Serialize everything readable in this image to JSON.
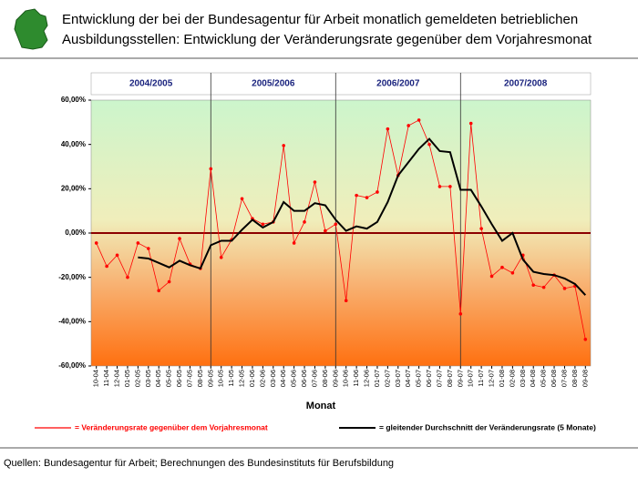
{
  "chart_data": {
    "type": "line",
    "title": "Entwicklung der bei der Bundesagentur für Arbeit monatlich gemeldeten betrieblichen",
    "subtitle": "Ausbildungsstellen: Entwicklung der Veränderungsrate gegenüber dem Vorjahresmonat",
    "periods": [
      "2004/2005",
      "2005/2006",
      "2006/2007",
      "2007/2008"
    ],
    "x_label": "Monat",
    "source": "Quellen: Bundesagentur für Arbeit; Berechnungen des Bundesinstituts für Berufsbildung",
    "categories": [
      "10-04",
      "11-04",
      "12-04",
      "01-05",
      "02-05",
      "03-05",
      "04-05",
      "05-05",
      "06-05",
      "07-05",
      "08-05",
      "09-05",
      "10-05",
      "11-05",
      "12-05",
      "01-06",
      "02-06",
      "03-06",
      "04-06",
      "05-06",
      "06-06",
      "07-06",
      "08-06",
      "09-06",
      "10-06",
      "11-06",
      "12-06",
      "01-07",
      "02-07",
      "03-07",
      "04-07",
      "05-07",
      "06-07",
      "07-07",
      "08-07",
      "09-07",
      "10-07",
      "11-07",
      "12-07",
      "01-08",
      "02-08",
      "03-08",
      "04-08",
      "05-08",
      "06-08",
      "07-08",
      "08-08",
      "09-08"
    ],
    "series": [
      {
        "name": "= Veränderungsrate gegenüber dem Vorjahresmonat",
        "color": "#ff0000",
        "values": [
          -4.5,
          -15,
          -10,
          -20,
          -4.5,
          -7,
          -26,
          -22,
          -2.5,
          -14,
          -16,
          29,
          -11,
          -3,
          15.5,
          6.5,
          4,
          5,
          39.5,
          -4.5,
          5,
          23,
          1,
          4,
          -30.5,
          17,
          16,
          18.5,
          47,
          26,
          48.5,
          51,
          40,
          21,
          21,
          -36.5,
          49.5,
          2,
          -19.5,
          -15.5,
          -18,
          -10,
          -23.5,
          -24.5,
          -19,
          -25,
          -24,
          -48
        ]
      },
      {
        "name": "= gleitender Durchschnitt der Veränderungsrate (5 Monate)",
        "color": "#000000",
        "values": [
          null,
          null,
          null,
          null,
          -11,
          -11.5,
          -13.5,
          -15.5,
          -12.5,
          -14.5,
          -16,
          -5.5,
          -3.5,
          -3.5,
          1.5,
          6,
          2.5,
          5,
          14,
          10,
          10,
          13.5,
          12.5,
          6,
          1,
          3,
          2,
          5,
          14,
          26,
          32,
          38,
          42.5,
          37,
          36.5,
          19.5,
          19.5,
          12,
          4,
          -3.5,
          0,
          -12,
          -17.5,
          -18.5,
          -19,
          -20.5,
          -23,
          -28
        ]
      }
    ],
    "ylim": [
      -60,
      60
    ],
    "yticks": [
      {
        "value": 60,
        "label": "60,00%"
      },
      {
        "value": 40,
        "label": "40,00%"
      },
      {
        "value": 20,
        "label": "20,00%"
      },
      {
        "value": 0,
        "label": "0,00%"
      },
      {
        "value": -20,
        "label": "-20,00%"
      },
      {
        "value": -40,
        "label": "-40,00%"
      },
      {
        "value": -60,
        "label": "-60,00%"
      }
    ],
    "zero_line_color": "#8b0000"
  }
}
